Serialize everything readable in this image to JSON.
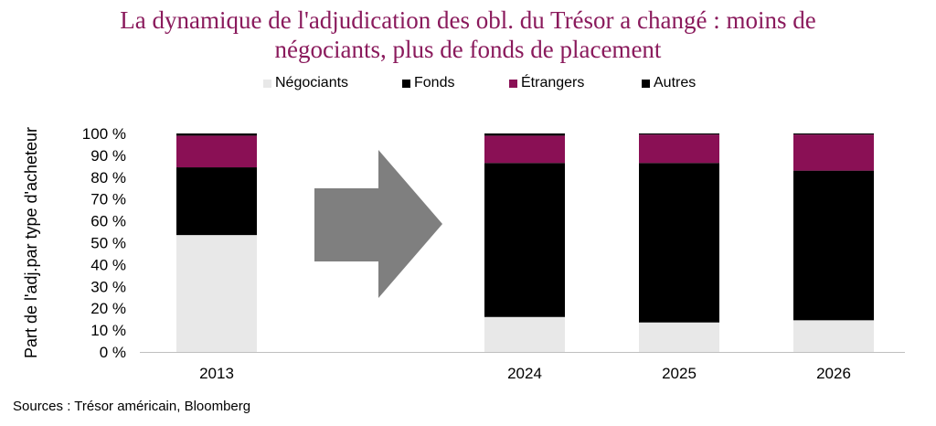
{
  "title_lines": [
    "La dynamique de l'adjudication des obl. du Trésor a changé : moins de",
    "négociants, plus de fonds de placement"
  ],
  "source": "Sources : Trésor américain, Bloomberg",
  "colors": {
    "title": "#8a1a5c",
    "negociants": "#e8e8e8",
    "fonds": "#000000",
    "etrangers": "#8a1055",
    "autres": "#000000",
    "arrow": "#7f7f7f"
  },
  "chart_data": {
    "type": "bar",
    "stacked": true,
    "title": "La dynamique de l'adjudication des obl. du Trésor a changé : moins de négociants, plus de fonds de placement",
    "ylabel": "Part de l'adj.par type d'acheteur",
    "xlabel": "",
    "ylim": [
      0,
      100
    ],
    "yticks": [
      "0 %",
      "10 %",
      "20 %",
      "30 %",
      "40 %",
      "50 %",
      "60 %",
      "70 %",
      "80 %",
      "90 %",
      "100 %"
    ],
    "categories": [
      "2013",
      "2024",
      "2025",
      "2026"
    ],
    "legend_position": "top",
    "series": [
      {
        "name": "Négociants",
        "values": [
          53.5,
          16,
          13.5,
          14.5
        ]
      },
      {
        "name": "Fonds",
        "values": [
          31,
          70.5,
          73,
          68.5
        ]
      },
      {
        "name": "Étrangers",
        "values": [
          14.5,
          12.5,
          13,
          16.5
        ]
      },
      {
        "name": "Autres",
        "values": [
          1,
          1,
          0.5,
          0.5
        ]
      }
    ],
    "annotations": [
      "arrow-right"
    ]
  }
}
